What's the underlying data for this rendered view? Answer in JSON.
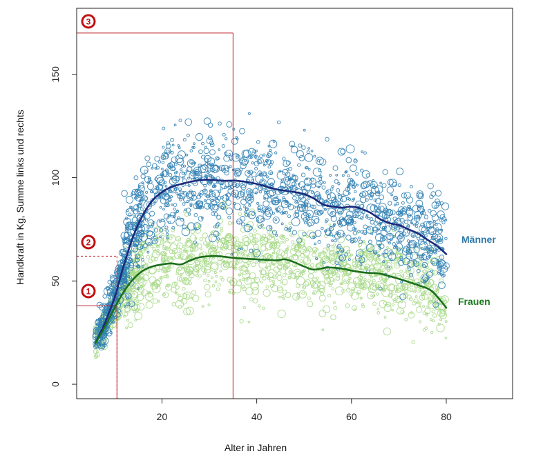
{
  "chart_data": {
    "type": "scatter",
    "xlabel": "Alter in Jahren",
    "ylabel": "Handkraft in Kg, Summe links und rechts",
    "xlim": [
      2,
      94
    ],
    "ylim": [
      -7,
      182
    ],
    "x_ticks": [
      20,
      40,
      60,
      80
    ],
    "y_ticks": [
      0,
      50,
      100,
      150
    ],
    "colors": {
      "maenner_points": "#2e7fb3",
      "maenner_line": "#1c2a7a",
      "frauen_points": "#a8d98a",
      "frauen_line": "#1b6e1b",
      "reference_lines": "#c0202a"
    },
    "series": [
      {
        "name": "Männer",
        "label_color": "#2e78a8",
        "range_y": [
          18,
          170
        ],
        "smooth_curve": [
          [
            6,
            20
          ],
          [
            8,
            30
          ],
          [
            10,
            42
          ],
          [
            12,
            58
          ],
          [
            14,
            72
          ],
          [
            16,
            82
          ],
          [
            18,
            89
          ],
          [
            20,
            93
          ],
          [
            22,
            95.5
          ],
          [
            25,
            97.5
          ],
          [
            28,
            98.8
          ],
          [
            30,
            99
          ],
          [
            33,
            98.5
          ],
          [
            35,
            98.6
          ],
          [
            37,
            98.2
          ],
          [
            40,
            97
          ],
          [
            43,
            95
          ],
          [
            45,
            94
          ],
          [
            48,
            93
          ],
          [
            50,
            92
          ],
          [
            52,
            90
          ],
          [
            54,
            87
          ],
          [
            56,
            86
          ],
          [
            58,
            85.5
          ],
          [
            60,
            86
          ],
          [
            62,
            85
          ],
          [
            64,
            83
          ],
          [
            66,
            80
          ],
          [
            68,
            78
          ],
          [
            70,
            77
          ],
          [
            72,
            75
          ],
          [
            74,
            73
          ],
          [
            76,
            70
          ],
          [
            78,
            67
          ],
          [
            80,
            63
          ]
        ]
      },
      {
        "name": "Frauen",
        "label_color": "#1b7a1b",
        "range_y": [
          11,
          95
        ],
        "smooth_curve": [
          [
            6,
            20
          ],
          [
            8,
            28
          ],
          [
            10,
            37
          ],
          [
            12,
            45
          ],
          [
            14,
            51
          ],
          [
            16,
            55
          ],
          [
            18,
            57
          ],
          [
            20,
            58
          ],
          [
            22,
            58.5
          ],
          [
            24,
            58
          ],
          [
            26,
            60
          ],
          [
            28,
            61.5
          ],
          [
            30,
            62
          ],
          [
            32,
            62
          ],
          [
            34,
            61.5
          ],
          [
            36,
            61
          ],
          [
            40,
            60.5
          ],
          [
            44,
            60
          ],
          [
            46,
            60.5
          ],
          [
            48,
            59
          ],
          [
            50,
            57
          ],
          [
            52,
            55.5
          ],
          [
            55,
            56.5
          ],
          [
            58,
            56
          ],
          [
            60,
            55
          ],
          [
            63,
            54
          ],
          [
            66,
            53.5
          ],
          [
            70,
            51
          ],
          [
            74,
            48
          ],
          [
            77,
            45
          ],
          [
            80,
            37
          ]
        ]
      }
    ],
    "reference_markers": [
      {
        "label": "1",
        "x": 10.5,
        "y": 38,
        "style": "solid"
      },
      {
        "label": "2",
        "x": 10.5,
        "y": 62,
        "style": "dashed"
      },
      {
        "label": "3",
        "x": 35,
        "y": 170,
        "style": "solid"
      }
    ]
  }
}
